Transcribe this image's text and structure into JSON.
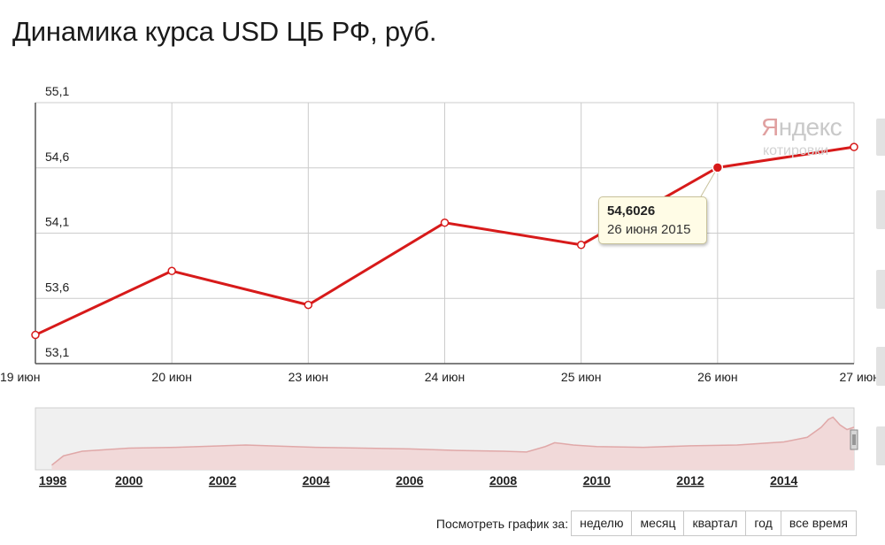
{
  "title": "Динамика курса USD ЦБ РФ, руб.",
  "colors": {
    "line": "#d71a1a",
    "grid": "#cccccc",
    "nav_fill": "#f1d9d9",
    "nav_line": "#e0a8a8"
  },
  "chart_data": [
    {
      "type": "line",
      "title": "Динамика курса USD ЦБ РФ, руб.",
      "categories": [
        "19 июн",
        "20 июн",
        "23 июн",
        "24 июн",
        "25 июн",
        "26 июн",
        "27 июн"
      ],
      "series": [
        {
          "values": [
            53.32,
            53.81,
            53.55,
            54.18,
            54.01,
            54.6026,
            54.76
          ]
        }
      ],
      "yticks": [
        "55,1",
        "54,6",
        "54,1",
        "53,6",
        "53,1"
      ],
      "ylim": [
        53.1,
        55.1
      ],
      "grid": true,
      "highlight": {
        "index": 5,
        "value_label": "54,6026",
        "date_label": "26 июня 2015"
      }
    },
    {
      "type": "area",
      "xticks": [
        "1998",
        "2000",
        "2002",
        "2004",
        "2006",
        "2008",
        "2010",
        "2012",
        "2014"
      ],
      "xlim": [
        1998,
        2015.5
      ],
      "ylim": [
        0,
        80
      ],
      "x": [
        1998.35,
        1998.6,
        1999.0,
        1999.5,
        2000.0,
        2001.0,
        2002.0,
        2002.5,
        2003.0,
        2004.0,
        2005.0,
        2006.0,
        2007.0,
        2008.0,
        2008.5,
        2008.9,
        2009.1,
        2009.5,
        2010.0,
        2011.0,
        2012.0,
        2013.0,
        2014.0,
        2014.5,
        2014.8,
        2014.95,
        2015.05,
        2015.2,
        2015.35,
        2015.5
      ],
      "y": [
        6,
        18,
        24,
        26,
        28,
        29,
        31,
        32,
        31,
        29,
        28,
        27,
        25,
        24,
        23,
        30,
        35,
        32,
        30,
        29,
        31,
        32,
        36,
        42,
        55,
        65,
        68,
        58,
        52,
        55
      ]
    }
  ],
  "watermark": {
    "title_first": "Я",
    "title_rest": "ндекс",
    "subtitle": "котировки"
  },
  "range_selector": {
    "label": "Посмотреть график за:",
    "buttons": [
      "неделю",
      "месяц",
      "квартал",
      "год",
      "все время"
    ]
  }
}
